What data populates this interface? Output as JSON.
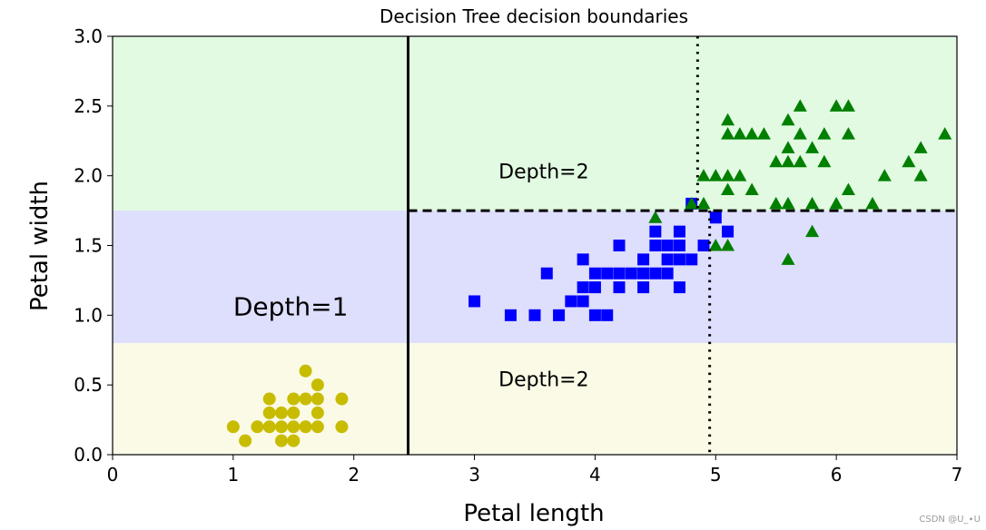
{
  "chart_data": {
    "type": "scatter",
    "title": "Decision Tree decision boundaries",
    "xlabel": "Petal length",
    "ylabel": "Petal width",
    "xlim": [
      0,
      7
    ],
    "ylim": [
      0,
      3
    ],
    "xticks": [
      0,
      1,
      2,
      3,
      4,
      5,
      6,
      7
    ],
    "yticks": [
      0.0,
      0.5,
      1.0,
      1.5,
      2.0,
      2.5,
      3.0
    ],
    "xtick_labels": [
      "0",
      "1",
      "2",
      "3",
      "4",
      "5",
      "6",
      "7"
    ],
    "ytick_labels": [
      "0.0",
      "0.5",
      "1.0",
      "1.5",
      "2.0",
      "2.5",
      "3.0"
    ],
    "grid": false,
    "regions": [
      {
        "x_range": [
          0,
          2.45
        ],
        "y_range": [
          1.75,
          3
        ],
        "color": "#e1fae1"
      },
      {
        "x_range": [
          2.45,
          7
        ],
        "y_range": [
          1.75,
          3
        ],
        "color": "#e1fae1"
      },
      {
        "x_range": [
          0,
          7
        ],
        "y_range": [
          0.8,
          1.75
        ],
        "color": "#dedefd"
      },
      {
        "x_range": [
          0,
          7
        ],
        "y_range": [
          0,
          0.8
        ],
        "color": "#fafae6"
      }
    ],
    "boundaries": [
      {
        "orientation": "vertical",
        "x": 2.45,
        "y_range": [
          0,
          3
        ],
        "style": "solid"
      },
      {
        "orientation": "horizontal",
        "y": 1.75,
        "x_range": [
          2.45,
          7
        ],
        "style": "dashed"
      },
      {
        "orientation": "vertical",
        "x": 4.85,
        "y_range": [
          1.75,
          3
        ],
        "style": "dotted"
      },
      {
        "orientation": "vertical",
        "x": 4.95,
        "y_range": [
          0,
          1.75
        ],
        "style": "dotted"
      }
    ],
    "annotations": [
      {
        "text": "Depth=1",
        "x": 1.0,
        "y": 1.0,
        "size": "large"
      },
      {
        "text": "Depth=2",
        "x": 3.2,
        "y": 1.98,
        "size": "medium"
      },
      {
        "text": "Depth=2",
        "x": 3.2,
        "y": 0.49,
        "size": "medium"
      }
    ],
    "series": [
      {
        "marker": "circle",
        "color": "#c8bc00",
        "points": [
          [
            1.0,
            0.2
          ],
          [
            1.1,
            0.1
          ],
          [
            1.2,
            0.2
          ],
          [
            1.3,
            0.2
          ],
          [
            1.3,
            0.3
          ],
          [
            1.3,
            0.4
          ],
          [
            1.4,
            0.1
          ],
          [
            1.4,
            0.2
          ],
          [
            1.4,
            0.3
          ],
          [
            1.5,
            0.1
          ],
          [
            1.5,
            0.2
          ],
          [
            1.5,
            0.3
          ],
          [
            1.5,
            0.4
          ],
          [
            1.6,
            0.2
          ],
          [
            1.6,
            0.4
          ],
          [
            1.6,
            0.6
          ],
          [
            1.7,
            0.2
          ],
          [
            1.7,
            0.3
          ],
          [
            1.7,
            0.4
          ],
          [
            1.7,
            0.5
          ],
          [
            1.9,
            0.2
          ],
          [
            1.9,
            0.4
          ]
        ]
      },
      {
        "marker": "square",
        "color": "#0000ff",
        "points": [
          [
            3.0,
            1.1
          ],
          [
            3.3,
            1.0
          ],
          [
            3.5,
            1.0
          ],
          [
            3.6,
            1.3
          ],
          [
            3.7,
            1.0
          ],
          [
            3.8,
            1.1
          ],
          [
            3.9,
            1.1
          ],
          [
            3.9,
            1.2
          ],
          [
            3.9,
            1.4
          ],
          [
            4.0,
            1.0
          ],
          [
            4.0,
            1.2
          ],
          [
            4.0,
            1.3
          ],
          [
            4.1,
            1.0
          ],
          [
            4.1,
            1.3
          ],
          [
            4.2,
            1.2
          ],
          [
            4.2,
            1.3
          ],
          [
            4.2,
            1.5
          ],
          [
            4.3,
            1.3
          ],
          [
            4.4,
            1.2
          ],
          [
            4.4,
            1.3
          ],
          [
            4.4,
            1.4
          ],
          [
            4.5,
            1.3
          ],
          [
            4.5,
            1.5
          ],
          [
            4.5,
            1.6
          ],
          [
            4.6,
            1.3
          ],
          [
            4.6,
            1.4
          ],
          [
            4.6,
            1.5
          ],
          [
            4.7,
            1.2
          ],
          [
            4.7,
            1.4
          ],
          [
            4.7,
            1.5
          ],
          [
            4.7,
            1.6
          ],
          [
            4.8,
            1.4
          ],
          [
            4.8,
            1.8
          ],
          [
            4.9,
            1.5
          ],
          [
            5.0,
            1.7
          ],
          [
            5.1,
            1.6
          ]
        ]
      },
      {
        "marker": "triangle",
        "color": "#007f00",
        "points": [
          [
            4.5,
            1.7
          ],
          [
            4.8,
            1.8
          ],
          [
            4.9,
            1.8
          ],
          [
            4.9,
            2.0
          ],
          [
            5.0,
            1.5
          ],
          [
            5.0,
            2.0
          ],
          [
            5.1,
            1.5
          ],
          [
            5.1,
            1.9
          ],
          [
            5.1,
            2.0
          ],
          [
            5.1,
            2.3
          ],
          [
            5.1,
            2.4
          ],
          [
            5.2,
            2.0
          ],
          [
            5.2,
            2.3
          ],
          [
            5.3,
            2.3
          ],
          [
            5.3,
            1.9
          ],
          [
            5.4,
            2.3
          ],
          [
            5.5,
            1.8
          ],
          [
            5.5,
            2.1
          ],
          [
            5.6,
            1.4
          ],
          [
            5.6,
            1.8
          ],
          [
            5.6,
            2.1
          ],
          [
            5.6,
            2.2
          ],
          [
            5.6,
            2.4
          ],
          [
            5.7,
            2.1
          ],
          [
            5.7,
            2.3
          ],
          [
            5.7,
            2.5
          ],
          [
            5.8,
            1.6
          ],
          [
            5.8,
            1.8
          ],
          [
            5.8,
            2.2
          ],
          [
            5.9,
            2.1
          ],
          [
            5.9,
            2.3
          ],
          [
            6.0,
            1.8
          ],
          [
            6.0,
            2.5
          ],
          [
            6.1,
            1.9
          ],
          [
            6.1,
            2.3
          ],
          [
            6.1,
            2.5
          ],
          [
            6.3,
            1.8
          ],
          [
            6.4,
            2.0
          ],
          [
            6.6,
            2.1
          ],
          [
            6.7,
            2.0
          ],
          [
            6.7,
            2.2
          ],
          [
            6.9,
            2.3
          ]
        ]
      }
    ]
  },
  "watermark": "CSDN @U_∙U"
}
